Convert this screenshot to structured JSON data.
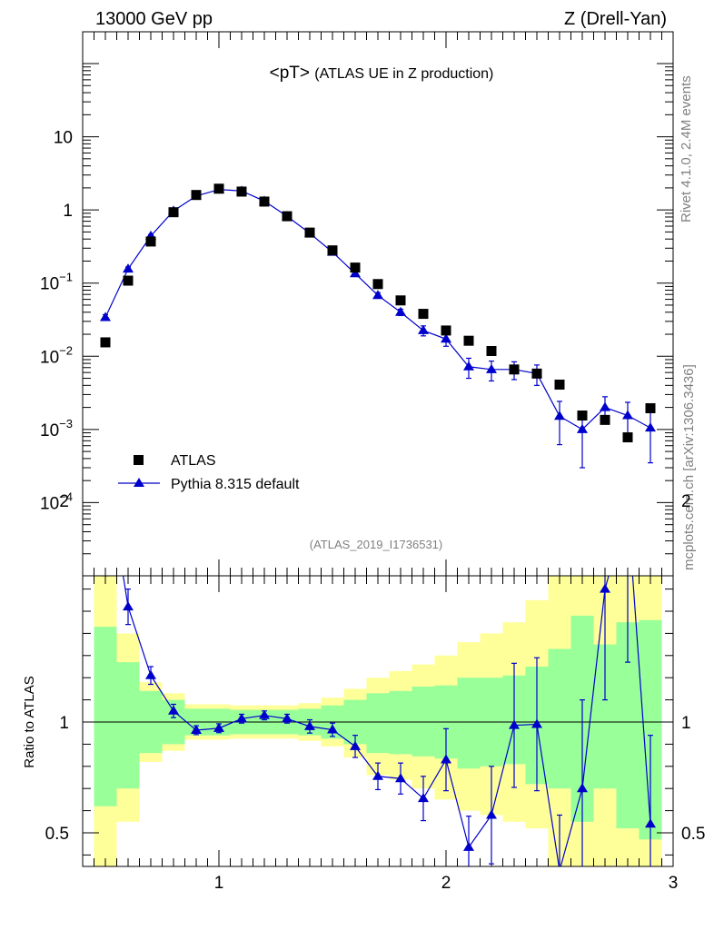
{
  "header": {
    "left": "13000 GeV pp",
    "right": "Z (Drell-Yan)"
  },
  "side": {
    "rivet": "Rivet 4.1.0,  2.4M events",
    "mcplots": "mcplots.cern.ch [arXiv:1306.3436]"
  },
  "chart_data": [
    {
      "type": "scatter",
      "title": "<pT>",
      "subtitle": "(ATLAS UE in Z production)",
      "analysis": "(ATLAS_2019_I1736531)",
      "yscale": "log",
      "xlim": [
        0.4,
        3.0
      ],
      "ylim": [
        1e-05,
        100
      ],
      "y_tick_labels": [
        {
          "value": 10,
          "base": "10",
          "exp": ""
        },
        {
          "value": 1,
          "base": "1",
          "exp": ""
        },
        {
          "value": 0.1,
          "base": "10",
          "exp": "−1"
        },
        {
          "value": 0.01,
          "base": "10",
          "exp": "−2"
        },
        {
          "value": 0.001,
          "base": "10",
          "exp": "−3"
        },
        {
          "value": 0.0001,
          "base": "10",
          "exp": "−4"
        }
      ],
      "legend": [
        {
          "label": "ATLAS",
          "marker": "square",
          "color": "#000000"
        },
        {
          "label": "Pythia 8.315 default",
          "marker": "triangle",
          "color": "#0000cc"
        }
      ],
      "x": [
        0.5,
        0.6,
        0.7,
        0.8,
        0.9,
        1.0,
        1.1,
        1.2,
        1.3,
        1.4,
        1.5,
        1.6,
        1.7,
        1.8,
        1.9,
        2.0,
        2.1,
        2.2,
        2.3,
        2.4,
        2.5,
        2.6,
        2.7,
        2.8,
        2.9
      ],
      "series": [
        {
          "name": "ATLAS",
          "values": [
            0.0155,
            0.108,
            0.37,
            0.93,
            1.6,
            1.95,
            1.78,
            1.3,
            0.82,
            0.49,
            0.28,
            0.163,
            0.097,
            0.058,
            0.038,
            0.0225,
            0.0163,
            0.0118,
            0.0066,
            0.0058,
            0.0041,
            0.00155,
            0.00135,
            0.00078,
            0.00195
          ]
        },
        {
          "name": "Pythia 8.315 default",
          "values": [
            0.034,
            0.156,
            0.44,
            0.97,
            1.55,
            1.9,
            1.82,
            1.32,
            0.82,
            0.48,
            0.265,
            0.135,
            0.068,
            0.04,
            0.0225,
            0.0172,
            0.0072,
            0.0066,
            0.0066,
            0.0058,
            0.00152,
            0.001,
            0.002,
            0.00155,
            0.00105
          ],
          "err_low": [
            0.003,
            0.01,
            0.02,
            0.03,
            0.04,
            0.04,
            0.04,
            0.03,
            0.02,
            0.015,
            0.01,
            0.012,
            0.006,
            0.004,
            0.0035,
            0.0035,
            0.0022,
            0.002,
            0.0018,
            0.0018,
            0.0009,
            0.0007,
            0.0008,
            0.0008,
            0.0007
          ],
          "err_high": [
            0.003,
            0.01,
            0.02,
            0.03,
            0.04,
            0.04,
            0.04,
            0.03,
            0.02,
            0.015,
            0.01,
            0.012,
            0.006,
            0.004,
            0.0035,
            0.0035,
            0.0022,
            0.002,
            0.0018,
            0.0018,
            0.0009,
            0.0007,
            0.0008,
            0.0008,
            0.0007
          ]
        }
      ]
    },
    {
      "type": "line",
      "ylabel": "Ratio to ATLAS",
      "xlim": [
        0.4,
        3.0
      ],
      "ylim": [
        0.335,
        2.25
      ],
      "x_ticks": [
        1,
        2,
        3
      ],
      "y_ticks": [
        0.5,
        1,
        2
      ],
      "x": [
        0.5,
        0.6,
        0.7,
        0.8,
        0.9,
        1.0,
        1.1,
        1.2,
        1.3,
        1.4,
        1.5,
        1.6,
        1.7,
        1.8,
        1.9,
        2.0,
        2.1,
        2.2,
        2.3,
        2.4,
        2.5,
        2.6,
        2.7,
        2.8,
        2.9
      ],
      "ratio": [
        2.17,
        1.52,
        1.21,
        1.05,
        0.963,
        0.972,
        1.015,
        1.03,
        1.015,
        0.98,
        0.965,
        0.89,
        0.755,
        0.745,
        0.655,
        0.83,
        0.435,
        0.58,
        0.985,
        0.99,
        0.33,
        0.7,
        1.6,
        1.97,
        0.54
      ],
      "ratio_err_low": [
        0.19,
        0.08,
        0.04,
        0.03,
        0.02,
        0.02,
        0.02,
        0.02,
        0.02,
        0.03,
        0.03,
        0.05,
        0.06,
        0.07,
        0.1,
        0.14,
        0.14,
        0.22,
        0.28,
        0.3,
        0.25,
        0.4,
        0.5,
        0.7,
        0.4
      ],
      "ratio_err_high": [
        0.19,
        0.08,
        0.04,
        0.03,
        0.02,
        0.02,
        0.02,
        0.02,
        0.02,
        0.03,
        0.03,
        0.05,
        0.06,
        0.07,
        0.1,
        0.14,
        0.14,
        0.22,
        0.28,
        0.3,
        0.25,
        0.4,
        0.5,
        0.7,
        0.4
      ],
      "band_stat_lo": [
        0.62,
        0.7,
        0.86,
        0.9,
        0.94,
        0.94,
        0.945,
        0.945,
        0.945,
        0.94,
        0.925,
        0.9,
        0.86,
        0.855,
        0.845,
        0.835,
        0.79,
        0.8,
        0.81,
        0.72,
        0.7,
        0.55,
        0.7,
        0.52,
        0.47
      ],
      "band_stat_hi": [
        1.43,
        1.27,
        1.14,
        1.1,
        1.06,
        1.06,
        1.055,
        1.055,
        1.055,
        1.06,
        1.075,
        1.1,
        1.13,
        1.14,
        1.16,
        1.165,
        1.2,
        1.2,
        1.21,
        1.25,
        1.33,
        1.48,
        1.35,
        1.45,
        1.46
      ],
      "band_tot_lo": [
        0.0,
        0.55,
        0.82,
        0.87,
        0.92,
        0.92,
        0.925,
        0.925,
        0.925,
        0.915,
        0.89,
        0.84,
        0.76,
        0.74,
        0.7,
        0.65,
        0.6,
        0.58,
        0.55,
        0.52,
        0.3,
        0.3,
        0.3,
        0.3,
        0.3
      ],
      "band_tot_hi": [
        1.74,
        1.4,
        1.18,
        1.13,
        1.08,
        1.08,
        1.075,
        1.075,
        1.075,
        1.085,
        1.11,
        1.15,
        1.2,
        1.23,
        1.26,
        1.3,
        1.36,
        1.4,
        1.45,
        1.55,
        1.9,
        2.3,
        2.3,
        2.3,
        1.8
      ]
    }
  ]
}
